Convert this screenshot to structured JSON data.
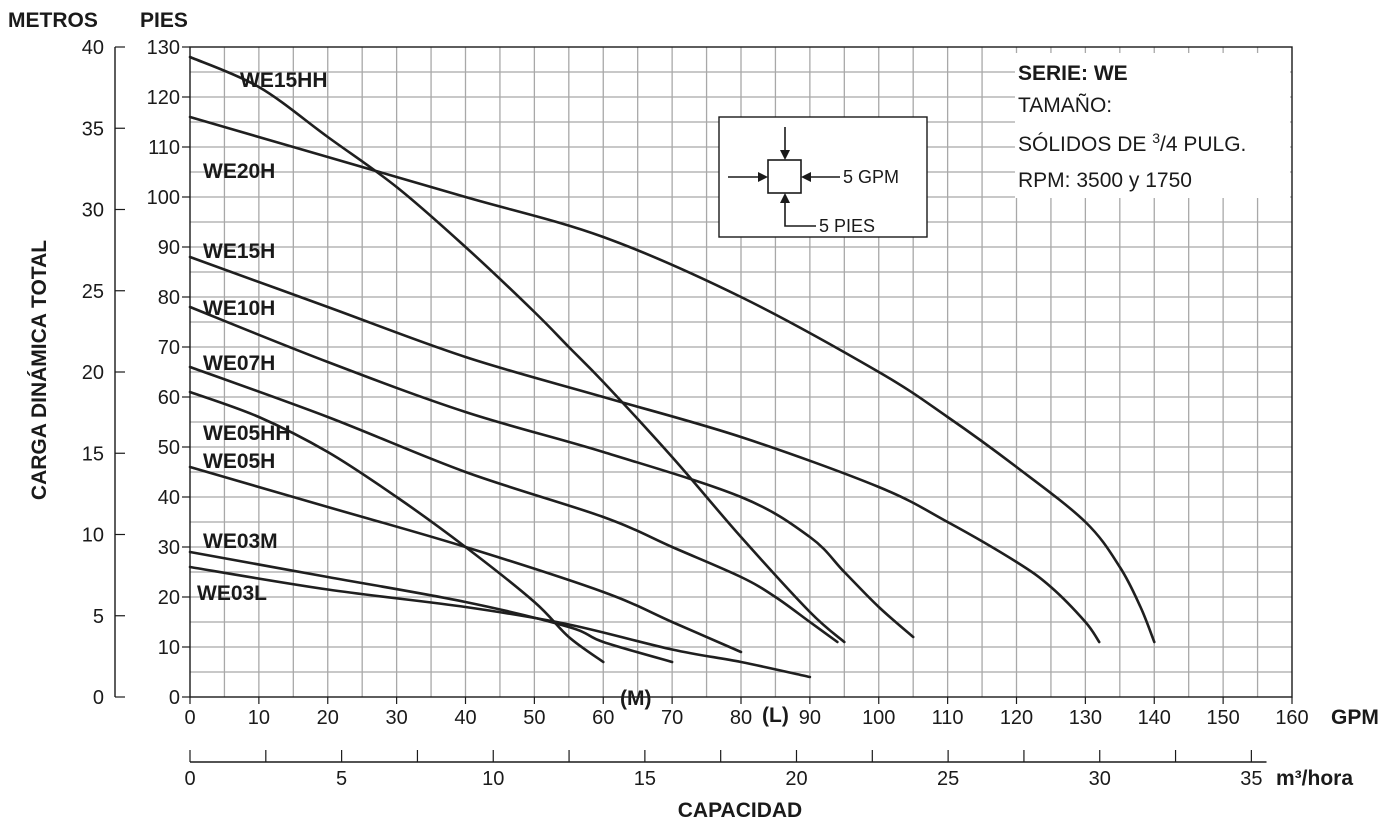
{
  "chart_data": {
    "type": "line",
    "title": "",
    "xlabel": "CAPACIDAD",
    "ylabel": "CARGA DINÁMICA TOTAL",
    "primary_x_unit": "GPM",
    "secondary_x_unit": "m³/hora",
    "left_y_unit": "METROS",
    "right_y_unit": "PIES",
    "xlim": [
      0,
      160
    ],
    "ylim_feet": [
      0,
      130
    ],
    "ylim_meters": [
      0,
      40
    ],
    "x_ticks_gpm": [
      "0",
      "10",
      "20",
      "30",
      "40",
      "50",
      "60",
      "70",
      "80",
      "90",
      "100",
      "110",
      "120",
      "130",
      "140",
      "150",
      "160"
    ],
    "x_ticks_m3h": [
      "0",
      "5",
      "10",
      "15",
      "20",
      "25",
      "30",
      "35"
    ],
    "y_ticks_feet": [
      "0",
      "10",
      "20",
      "30",
      "40",
      "50",
      "60",
      "70",
      "80",
      "90",
      "100",
      "110",
      "120",
      "130"
    ],
    "y_ticks_meters": [
      "0",
      "5",
      "10",
      "15",
      "20",
      "25",
      "30",
      "35",
      "40"
    ],
    "grid": true,
    "info_box": {
      "line1": "SERIE: WE",
      "line2": "TAMAÑO:",
      "line3_prefix": "SÓLIDOS DE ",
      "line3_num": "3",
      "line3_mid": "/4",
      "line3_suffix": " PULG.",
      "line4": "RPM: 3500 y 1750"
    },
    "legend_box": {
      "gpm_label": "5 GPM",
      "pies_label": "5 PIES"
    },
    "series": [
      {
        "name": "WE15HH",
        "x": [
          0,
          10,
          20,
          30,
          40,
          50,
          55,
          60,
          70,
          80,
          90,
          95
        ],
        "y": [
          128,
          122,
          112,
          102,
          90,
          77,
          70,
          63,
          48,
          32,
          17,
          11
        ]
      },
      {
        "name": "WE20H",
        "x": [
          0,
          20,
          40,
          60,
          80,
          100,
          110,
          120,
          130,
          135,
          138,
          140
        ],
        "y": [
          116,
          108,
          100,
          92,
          80,
          65,
          56,
          46,
          35,
          26,
          18,
          11
        ]
      },
      {
        "name": "WE15H",
        "x": [
          0,
          20,
          40,
          60,
          80,
          100,
          110,
          120,
          125,
          130,
          132
        ],
        "y": [
          88,
          78,
          68,
          60,
          52,
          42,
          35,
          27,
          22,
          15,
          11
        ]
      },
      {
        "name": "WE10H",
        "x": [
          0,
          20,
          40,
          60,
          80,
          90,
          95,
          100,
          105
        ],
        "y": [
          78,
          67,
          57,
          49,
          40,
          32,
          25,
          18,
          12
        ]
      },
      {
        "name": "WE07H",
        "x": [
          0,
          20,
          40,
          60,
          70,
          80,
          85,
          90,
          94
        ],
        "y": [
          66,
          56,
          45,
          36,
          30,
          24,
          20,
          15,
          11
        ]
      },
      {
        "name": "WE05HH",
        "x": [
          0,
          10,
          20,
          30,
          40,
          50,
          55,
          60
        ],
        "y": [
          61,
          56,
          49,
          40,
          30,
          19,
          12,
          7
        ]
      },
      {
        "name": "WE05H",
        "x": [
          0,
          20,
          40,
          60,
          70,
          80
        ],
        "y": [
          46,
          38,
          30,
          21,
          15,
          9
        ]
      },
      {
        "name": "WE03M",
        "x": [
          0,
          20,
          40,
          55,
          60,
          70
        ],
        "y": [
          29,
          24,
          19,
          14,
          11,
          7
        ]
      },
      {
        "name": "WE03L",
        "x": [
          0,
          20,
          40,
          55,
          70,
          80,
          90
        ],
        "y": [
          26,
          21.5,
          18,
          14.5,
          9.5,
          7,
          4
        ]
      }
    ],
    "curve_labels": [
      "WE15HH",
      "WE20H",
      "WE15H",
      "WE10H",
      "WE07H",
      "WE05HH",
      "WE05H",
      "WE03M",
      "WE03L"
    ],
    "annotations": {
      "m": "(M)",
      "l": "(L)"
    }
  }
}
